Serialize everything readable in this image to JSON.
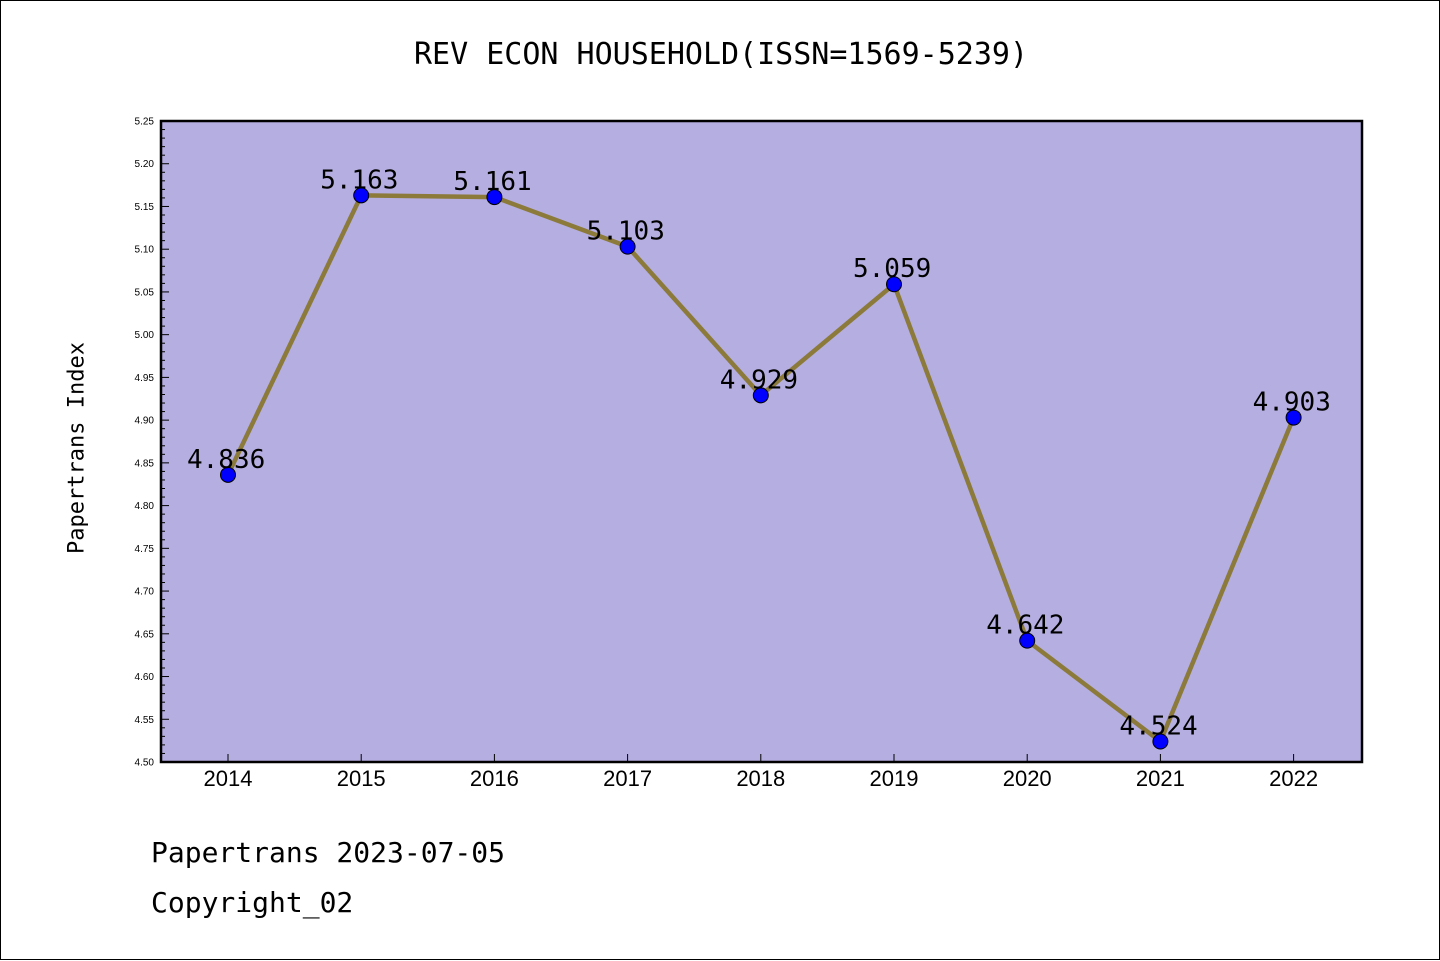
{
  "chart_data": {
    "type": "line",
    "title": "REV ECON HOUSEHOLD(ISSN=1569-5239)",
    "xlabel": "",
    "ylabel": "Papertrans Index",
    "categories": [
      "2014",
      "2015",
      "2016",
      "2017",
      "2018",
      "2019",
      "2020",
      "2021",
      "2022"
    ],
    "series": [
      {
        "values": [
          4.836,
          5.163,
          5.161,
          5.103,
          4.929,
          5.059,
          4.642,
          4.524,
          4.903
        ],
        "labels": [
          "4.836",
          "5.163",
          "5.161",
          "5.103",
          "4.929",
          "5.059",
          "4.642",
          "4.524",
          "4.903"
        ],
        "line_color": "#8b7a3a",
        "marker_color": "#0000ff"
      }
    ],
    "ylim": [
      4.5,
      5.25
    ],
    "yticks": [
      "4.50",
      "4.55",
      "4.60",
      "4.65",
      "4.70",
      "4.75",
      "4.80",
      "4.85",
      "4.90",
      "4.95",
      "5.00",
      "5.05",
      "5.10",
      "5.15",
      "5.20",
      "5.25"
    ],
    "plot_background": "#b5aee0",
    "grid": false,
    "legend": "none"
  },
  "footer": {
    "line1": "Papertrans 2023-07-05",
    "line2": "Copyright_02"
  }
}
